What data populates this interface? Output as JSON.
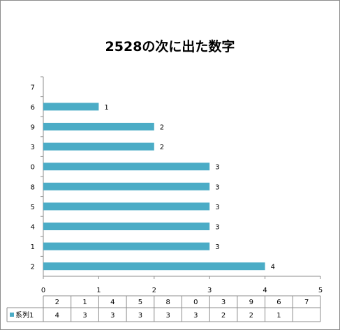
{
  "chart_data": {
    "type": "bar",
    "orientation": "horizontal",
    "title": "2528の次に出た数字",
    "categories": [
      "2",
      "1",
      "4",
      "5",
      "8",
      "0",
      "3",
      "9",
      "6",
      "7"
    ],
    "series": [
      {
        "name": "系列1",
        "values": [
          4,
          3,
          3,
          3,
          3,
          3,
          2,
          2,
          1,
          null
        ]
      }
    ],
    "xlim": [
      0,
      5
    ],
    "x_ticks": [
      0,
      1,
      2,
      3,
      4,
      5
    ],
    "data_labels": true,
    "data_table": true,
    "grid": false,
    "legend": "in-data-table",
    "colors": {
      "bar": "#4bacc6",
      "axis": "#8c8c8c"
    }
  }
}
